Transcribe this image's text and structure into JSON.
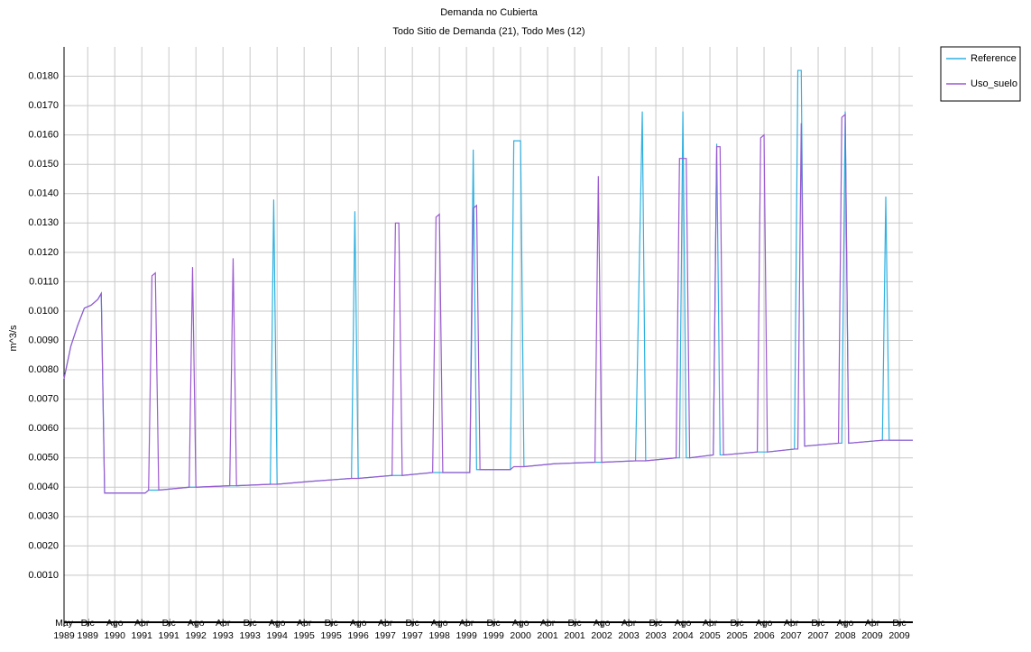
{
  "chart_data": {
    "type": "line",
    "title": "Demanda no Cubierta",
    "subtitle": "Todo Sitio de Demanda (21), Todo Mes (12)",
    "y_label": "m^3/s",
    "x": [
      "1989-05",
      "1989-07",
      "1989-09",
      "1989-11",
      "1990-01",
      "1990-03",
      "1990-04",
      "1990-05",
      "1991-05",
      "1991-06",
      "1991-07",
      "1991-08",
      "1991-09",
      "1992-06",
      "1992-07",
      "1992-08",
      "1993-06",
      "1993-07",
      "1993-08",
      "1994-06",
      "1994-07",
      "1994-08",
      "1995-06",
      "1996-06",
      "1996-07",
      "1996-08",
      "1997-06",
      "1997-07",
      "1997-08",
      "1997-09",
      "1998-06",
      "1998-07",
      "1998-08",
      "1998-09",
      "1999-05",
      "1999-06",
      "1999-07",
      "1999-08",
      "2000-05",
      "2000-06",
      "2000-08",
      "2000-09",
      "2001-06",
      "2002-06",
      "2002-07",
      "2002-08",
      "2003-06",
      "2003-08",
      "2003-09",
      "2004-06",
      "2004-07",
      "2004-08",
      "2004-09",
      "2004-10",
      "2005-05",
      "2005-06",
      "2005-07",
      "2005-08",
      "2006-06",
      "2006-07",
      "2006-08",
      "2006-09",
      "2007-05",
      "2007-06",
      "2007-07",
      "2007-08",
      "2008-06",
      "2008-07",
      "2008-08",
      "2008-09",
      "2009-07",
      "2009-08",
      "2009-09",
      "2010-04"
    ],
    "series": [
      {
        "name": "Reference",
        "color": "#2fb0e0",
        "values": [
          0.0077,
          0.0088,
          0.0095,
          0.0101,
          0.0102,
          0.0104,
          0.0106,
          0.0038,
          0.0038,
          0.0039,
          0.0039,
          0.0039,
          0.0039,
          0.004,
          0.004,
          0.004,
          0.00405,
          0.00405,
          0.00405,
          0.0041,
          0.0138,
          0.0041,
          0.0042,
          0.0043,
          0.0134,
          0.0043,
          0.0044,
          0.0044,
          0.0044,
          0.0044,
          0.0045,
          0.0045,
          0.0045,
          0.0045,
          0.0045,
          0.0155,
          0.0046,
          0.0046,
          0.0046,
          0.0158,
          0.0158,
          0.0047,
          0.0048,
          0.00485,
          0.00485,
          0.00485,
          0.0049,
          0.0168,
          0.0049,
          0.005,
          0.005,
          0.0168,
          0.005,
          0.005,
          0.0051,
          0.0157,
          0.0051,
          0.0051,
          0.0052,
          0.0052,
          0.0052,
          0.0052,
          0.0053,
          0.0182,
          0.0182,
          0.0054,
          0.0055,
          0.0055,
          0.0168,
          0.0055,
          0.0056,
          0.0139,
          0.0056,
          0.0056
        ]
      },
      {
        "name": "Uso_suelo",
        "color": "#9b59d0",
        "values": [
          0.0077,
          0.0088,
          0.0095,
          0.0101,
          0.0102,
          0.0104,
          0.0106,
          0.0038,
          0.0038,
          0.0039,
          0.0112,
          0.0113,
          0.0039,
          0.004,
          0.0115,
          0.004,
          0.00405,
          0.0118,
          0.00405,
          0.0041,
          0.0041,
          0.0041,
          0.0042,
          0.0043,
          0.0043,
          0.0043,
          0.0044,
          0.013,
          0.013,
          0.0044,
          0.0045,
          0.0132,
          0.0133,
          0.0045,
          0.0045,
          0.0135,
          0.0136,
          0.0046,
          0.0046,
          0.0047,
          0.0047,
          0.0047,
          0.0048,
          0.00485,
          0.0146,
          0.00485,
          0.0049,
          0.0049,
          0.0049,
          0.005,
          0.0152,
          0.0152,
          0.0152,
          0.005,
          0.0051,
          0.0156,
          0.0156,
          0.0051,
          0.0052,
          0.0159,
          0.016,
          0.0052,
          0.0053,
          0.0053,
          0.0164,
          0.0054,
          0.0055,
          0.0166,
          0.0167,
          0.0055,
          0.0056,
          0.0056,
          0.0056,
          0.0056
        ]
      }
    ],
    "xlim": [
      "1989-05",
      "2010-04"
    ],
    "xticks": [
      {
        "value": "1989-05",
        "label": "May 1989"
      },
      {
        "value": "1989-12",
        "label": "Dic 1989"
      },
      {
        "value": "1990-08",
        "label": "Ago 1990"
      },
      {
        "value": "1991-04",
        "label": "Abr 1991"
      },
      {
        "value": "1991-12",
        "label": "Dic 1991"
      },
      {
        "value": "1992-08",
        "label": "Ago 1992"
      },
      {
        "value": "1993-04",
        "label": "Abr 1993"
      },
      {
        "value": "1993-12",
        "label": "Dic 1993"
      },
      {
        "value": "1994-08",
        "label": "Ago 1994"
      },
      {
        "value": "1995-04",
        "label": "Abr 1995"
      },
      {
        "value": "1995-12",
        "label": "Dic 1995"
      },
      {
        "value": "1996-08",
        "label": "Ago 1996"
      },
      {
        "value": "1997-04",
        "label": "Abr 1997"
      },
      {
        "value": "1997-12",
        "label": "Dic 1997"
      },
      {
        "value": "1998-08",
        "label": "Ago 1998"
      },
      {
        "value": "1999-04",
        "label": "Abr 1999"
      },
      {
        "value": "1999-12",
        "label": "Dic 1999"
      },
      {
        "value": "2000-08",
        "label": "Ago 2000"
      },
      {
        "value": "2001-04",
        "label": "Abr 2001"
      },
      {
        "value": "2001-12",
        "label": "Dic 2001"
      },
      {
        "value": "2002-08",
        "label": "Ago 2002"
      },
      {
        "value": "2003-04",
        "label": "Abr 2003"
      },
      {
        "value": "2003-12",
        "label": "Dic 2003"
      },
      {
        "value": "2004-08",
        "label": "Ago 2004"
      },
      {
        "value": "2005-04",
        "label": "Abr 2005"
      },
      {
        "value": "2005-12",
        "label": "Dic 2005"
      },
      {
        "value": "2006-08",
        "label": "Ago 2006"
      },
      {
        "value": "2007-04",
        "label": "Abr 2007"
      },
      {
        "value": "2007-12",
        "label": "Dic 2007"
      },
      {
        "value": "2008-08",
        "label": "Ago 2008"
      },
      {
        "value": "2009-04",
        "label": "Abr 2009"
      },
      {
        "value": "2009-12",
        "label": "Dic 2009"
      }
    ],
    "ylim": [
      -0.0006,
      0.019
    ],
    "yticks": [
      {
        "value": 0.001,
        "label": "0.0010"
      },
      {
        "value": 0.002,
        "label": "0.0020"
      },
      {
        "value": 0.003,
        "label": "0.0030"
      },
      {
        "value": 0.004,
        "label": "0.0040"
      },
      {
        "value": 0.005,
        "label": "0.0050"
      },
      {
        "value": 0.006,
        "label": "0.0060"
      },
      {
        "value": 0.007,
        "label": "0.0070"
      },
      {
        "value": 0.008,
        "label": "0.0080"
      },
      {
        "value": 0.009,
        "label": "0.0090"
      },
      {
        "value": 0.01,
        "label": "0.0100"
      },
      {
        "value": 0.011,
        "label": "0.0110"
      },
      {
        "value": 0.012,
        "label": "0.0120"
      },
      {
        "value": 0.013,
        "label": "0.0130"
      },
      {
        "value": 0.014,
        "label": "0.0140"
      },
      {
        "value": 0.015,
        "label": "0.0150"
      },
      {
        "value": 0.016,
        "label": "0.0160"
      },
      {
        "value": 0.017,
        "label": "0.0170"
      },
      {
        "value": 0.018,
        "label": "0.0180"
      }
    ],
    "grid": true,
    "legend": "top-right",
    "title_color": "#2a2ad0"
  }
}
